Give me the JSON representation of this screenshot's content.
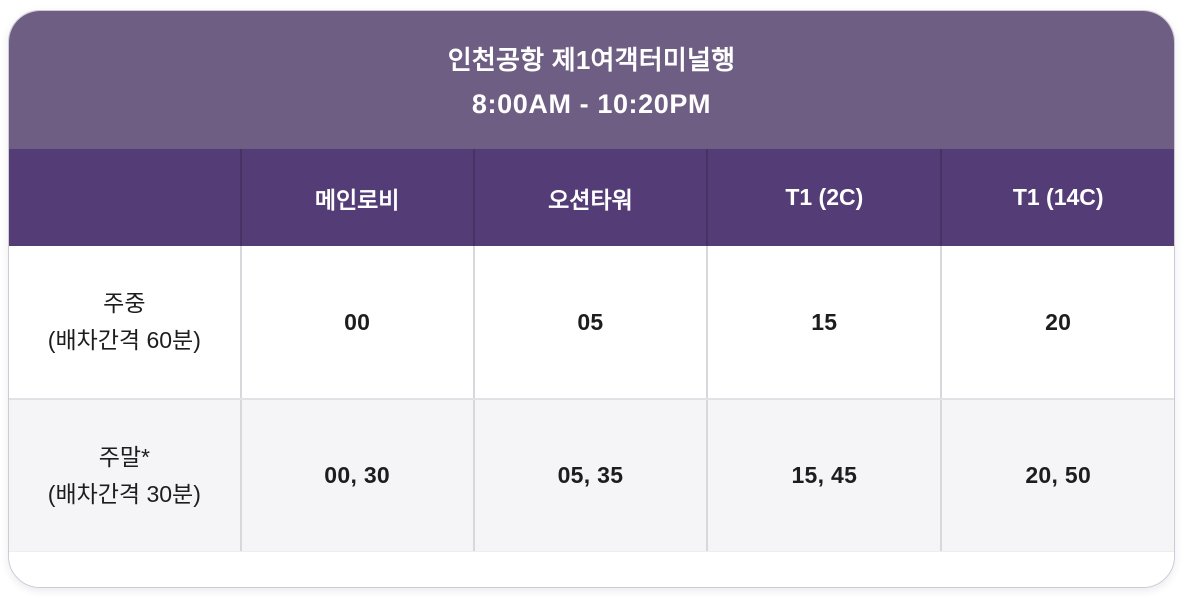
{
  "header": {
    "title": "인천공항 제1여객터미널행",
    "hours": "8:00AM - 10:20PM"
  },
  "table": {
    "columns": [
      "",
      "메인로비",
      "오션타워",
      "T1 (2C)",
      "T1 (14C)"
    ],
    "rows": [
      {
        "label_line1": "주중",
        "label_line2": "(배차간격 60분)",
        "values": [
          "00",
          "05",
          "15",
          "20"
        ]
      },
      {
        "label_line1": "주말*",
        "label_line2": "(배차간격 30분)",
        "values": [
          "00, 30",
          "05, 35",
          "15, 45",
          "20, 50"
        ]
      }
    ]
  },
  "chart_data": {
    "type": "table",
    "title": "인천공항 제1여객터미널행",
    "subtitle": "8:00AM - 10:20PM",
    "columns": [
      "",
      "메인로비",
      "오션타워",
      "T1 (2C)",
      "T1 (14C)"
    ],
    "rows": [
      [
        "주중 (배차간격 60분)",
        "00",
        "05",
        "15",
        "20"
      ],
      [
        "주말* (배차간격 30분)",
        "00, 30",
        "05, 35",
        "15, 45",
        "20, 50"
      ]
    ]
  },
  "colors": {
    "header_bg": "#6E5E83",
    "subheader_bg": "#543C77",
    "row_weekend_bg": "#F5F4F6",
    "header_text": "#FFFFFF",
    "body_text": "#1D1D1F"
  }
}
